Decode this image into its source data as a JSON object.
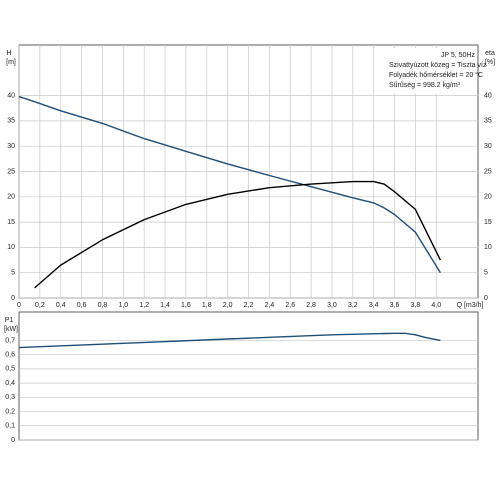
{
  "chart_data": [
    {
      "type": "line",
      "y_label": "H",
      "y_unit": "[m]",
      "y2_label": "eta",
      "y2_unit": "[%]",
      "x_label": "Q [m3/h]",
      "annotations": [
        "JP 5, 50Hz",
        "Szivattyúzott közeg = Tiszta víz",
        "Folyadék hőmérséklet = 20 °C",
        "Sűrűség = 998.2 kg/m³"
      ],
      "x": [
        0,
        0.15,
        0.4,
        0.8,
        1.2,
        1.6,
        2.0,
        2.4,
        2.8,
        3.2,
        3.4,
        3.5,
        3.6,
        3.8,
        4.04
      ],
      "series": [
        {
          "color": "#1f4e79",
          "values": [
            39.8,
            38.8,
            37,
            34.5,
            31.5,
            29,
            26.5,
            24.2,
            22,
            19.8,
            18.8,
            17.8,
            16.5,
            13,
            5
          ]
        },
        {
          "color": "#000000",
          "axis": "y2",
          "values": [
            null,
            2,
            6.5,
            11.5,
            15.5,
            18.5,
            20.5,
            21.8,
            22.5,
            23,
            23,
            22.5,
            21,
            17.5,
            7.5
          ]
        }
      ],
      "xlim": [
        0,
        4.4
      ],
      "xticks": [
        0,
        {
          "value": 0.2,
          "label": "0,2"
        },
        {
          "value": 0.4,
          "label": "0,4"
        },
        {
          "value": 0.6,
          "label": "0,6"
        },
        {
          "value": 0.8,
          "label": "0,8"
        },
        {
          "value": 1.0,
          "label": "1,0"
        },
        {
          "value": 1.2,
          "label": "1,2"
        },
        {
          "value": 1.4,
          "label": "1,4"
        },
        {
          "value": 1.6,
          "label": "1,6"
        },
        {
          "value": 1.8,
          "label": "1,8"
        },
        {
          "value": 2.0,
          "label": "2,0"
        },
        {
          "value": 2.2,
          "label": "2,2"
        },
        {
          "value": 2.4,
          "label": "2,4"
        },
        {
          "value": 2.6,
          "label": "2,6"
        },
        {
          "value": 2.8,
          "label": "2,8"
        },
        {
          "value": 3.0,
          "label": "3,0"
        },
        {
          "value": 3.2,
          "label": "3,2"
        },
        {
          "value": 3.4,
          "label": "3,4"
        },
        {
          "value": 3.6,
          "label": "3,6"
        },
        {
          "value": 3.8,
          "label": "3,8"
        },
        {
          "value": 4.0,
          "label": "4,0"
        }
      ],
      "ylim": [
        0,
        50
      ],
      "yticks": [
        0,
        5,
        10,
        15,
        20,
        25,
        30,
        35,
        40
      ],
      "y2lim": [
        0,
        50
      ],
      "y2ticks": [
        0,
        5,
        10,
        15,
        20,
        25,
        30,
        35,
        40
      ],
      "grid": true
    },
    {
      "type": "line",
      "y_label": "P1",
      "y_unit": "[kW]",
      "x": [
        0,
        1.0,
        2.0,
        3.0,
        3.6,
        3.7,
        3.8,
        3.9,
        4.04
      ],
      "series": [
        {
          "color": "#1f4e79",
          "values": [
            0.65,
            0.68,
            0.71,
            0.74,
            0.75,
            0.75,
            0.74,
            0.72,
            0.7
          ]
        }
      ],
      "xlim": [
        0,
        4.4
      ],
      "ylim": [
        0,
        0.9
      ],
      "yticks": [
        0,
        {
          "value": 0.1,
          "label": "0,1"
        },
        {
          "value": 0.2,
          "label": "0,2"
        },
        {
          "value": 0.3,
          "label": "0,3"
        },
        {
          "value": 0.4,
          "label": "0,4"
        },
        {
          "value": 0.5,
          "label": "0,5"
        },
        {
          "value": 0.6,
          "label": "0,6"
        },
        {
          "value": 0.7,
          "label": "0,7"
        }
      ],
      "grid": true
    }
  ]
}
